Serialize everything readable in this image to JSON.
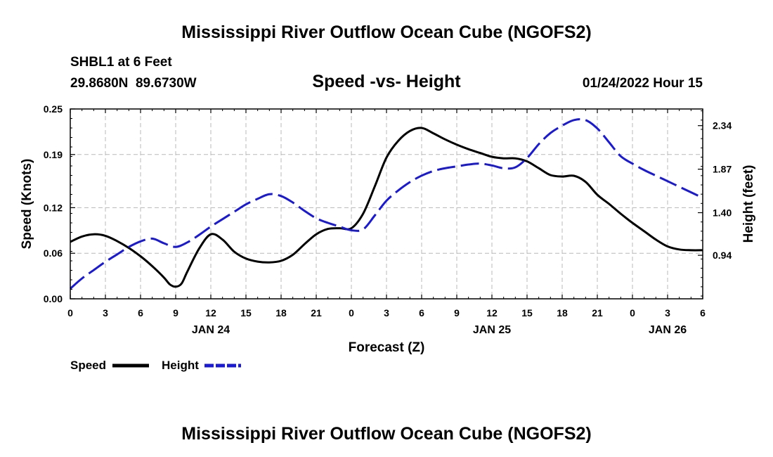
{
  "page": {
    "title": "Mississippi River Outflow Ocean Cube (NGOFS2)",
    "footer_title": "Mississippi River Outflow Ocean Cube (NGOFS2)"
  },
  "header": {
    "station": "SHBL1 at 6 Feet",
    "coords": "29.8680N  89.6730W",
    "subtitle": "Speed -vs- Height",
    "datetime": "01/24/2022 Hour 15"
  },
  "chart_data": {
    "type": "line",
    "title": "Speed -vs- Height",
    "xlabel": "Forecast (Z)",
    "ylabel": "Speed (Knots)",
    "y2label": "Height (feet)",
    "x_range": [
      0,
      54
    ],
    "x_ticks": [
      0,
      3,
      6,
      9,
      12,
      15,
      18,
      21,
      24,
      27,
      30,
      33,
      36,
      39,
      42,
      45,
      48,
      51,
      54
    ],
    "x_tick_labels": [
      "0",
      "3",
      "6",
      "9",
      "12",
      "15",
      "18",
      "21",
      "0",
      "3",
      "6",
      "9",
      "12",
      "15",
      "18",
      "21",
      "0",
      "3",
      "6"
    ],
    "date_labels": [
      {
        "x": 12,
        "label": "JAN 24"
      },
      {
        "x": 36,
        "label": "JAN 25"
      },
      {
        "x": 51,
        "label": "JAN 26"
      }
    ],
    "ylim": [
      0,
      0.25
    ],
    "y_ticks": [
      0,
      0.06,
      0.12,
      0.19,
      0.25
    ],
    "y_tick_labels": [
      "0.00",
      "0.06",
      "0.12",
      "0.19",
      "0.25"
    ],
    "y2lim": [
      0.47,
      2.52
    ],
    "y2_ticks": [
      0.94,
      1.4,
      1.87,
      2.34
    ],
    "y2_tick_labels": [
      "0.94",
      "1.40",
      "1.87",
      "2.34"
    ],
    "grid": true,
    "series": [
      {
        "name": "Speed",
        "axis": "left",
        "color": "#000000",
        "dash": "solid",
        "x": [
          0,
          1,
          2,
          3,
          4,
          5,
          6,
          7,
          8,
          8.5,
          9,
          9.5,
          10,
          11,
          12,
          13,
          14,
          15,
          16,
          17,
          18,
          19,
          20,
          21,
          22,
          23,
          24,
          25,
          26,
          27,
          28,
          29,
          30,
          31,
          32,
          33,
          34,
          35,
          36,
          37,
          38,
          39,
          40,
          41,
          42,
          43,
          44,
          45,
          46,
          47,
          48,
          49,
          50,
          51,
          52,
          53,
          54
        ],
        "values": [
          0.075,
          0.082,
          0.085,
          0.083,
          0.076,
          0.067,
          0.056,
          0.043,
          0.028,
          0.019,
          0.016,
          0.02,
          0.036,
          0.066,
          0.085,
          0.078,
          0.062,
          0.053,
          0.049,
          0.048,
          0.05,
          0.058,
          0.072,
          0.085,
          0.092,
          0.093,
          0.093,
          0.112,
          0.148,
          0.186,
          0.208,
          0.221,
          0.225,
          0.218,
          0.21,
          0.203,
          0.197,
          0.192,
          0.187,
          0.185,
          0.185,
          0.181,
          0.172,
          0.163,
          0.161,
          0.162,
          0.154,
          0.137,
          0.125,
          0.112,
          0.1,
          0.089,
          0.078,
          0.069,
          0.065,
          0.064,
          0.064
        ]
      },
      {
        "name": "Height",
        "axis": "right",
        "color": "#1a1ad6",
        "dash": "dashed",
        "x": [
          0,
          1,
          2,
          3,
          4,
          5,
          6,
          7,
          8,
          9,
          10,
          11,
          12,
          13,
          14,
          15,
          16,
          17,
          18,
          19,
          20,
          21,
          22,
          23,
          24,
          25,
          26,
          27,
          28,
          29,
          30,
          31,
          32,
          33,
          34,
          35,
          36,
          37,
          38,
          39,
          40,
          41,
          42,
          43,
          44,
          45,
          46,
          47,
          48,
          49,
          50,
          51,
          52,
          53,
          54
        ],
        "values": [
          0.58,
          0.69,
          0.78,
          0.87,
          0.95,
          1.03,
          1.09,
          1.12,
          1.07,
          1.03,
          1.08,
          1.16,
          1.25,
          1.33,
          1.41,
          1.49,
          1.55,
          1.6,
          1.58,
          1.51,
          1.42,
          1.34,
          1.29,
          1.25,
          1.21,
          1.22,
          1.37,
          1.53,
          1.64,
          1.73,
          1.8,
          1.85,
          1.88,
          1.9,
          1.92,
          1.93,
          1.91,
          1.88,
          1.89,
          1.99,
          2.14,
          2.26,
          2.34,
          2.4,
          2.4,
          2.31,
          2.16,
          2.01,
          1.93,
          1.86,
          1.8,
          1.74,
          1.68,
          1.62,
          1.56
        ]
      }
    ],
    "legend": [
      {
        "label": "Speed",
        "color": "#000000",
        "dash": "solid"
      },
      {
        "label": "Height",
        "color": "#1a1ad6",
        "dash": "dashed"
      }
    ]
  }
}
